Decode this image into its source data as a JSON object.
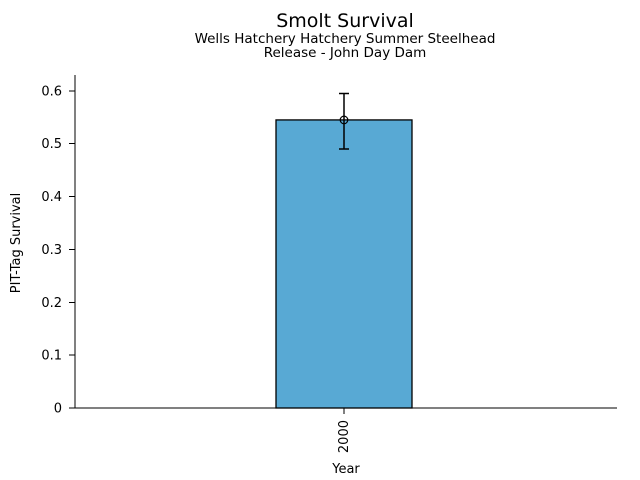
{
  "chart_data": {
    "type": "bar",
    "title": "Smolt Survival",
    "subtitle_line1": "Wells Hatchery Hatchery Summer Steelhead",
    "subtitle_line2": "Release - John Day Dam",
    "xlabel": "Year",
    "ylabel": "PIT-Tag Survival",
    "categories": [
      "2000"
    ],
    "values": [
      0.545
    ],
    "error_low": [
      0.49
    ],
    "error_high": [
      0.595
    ],
    "ylim": [
      0,
      0.63
    ],
    "ytick_values": [
      0,
      0.1,
      0.2,
      0.3,
      0.4,
      0.5,
      0.6
    ],
    "yticks": [
      "0",
      "0.1",
      "0.2",
      "0.3",
      "0.4",
      "0.5",
      "0.6"
    ],
    "xtick_rotation_deg": 90,
    "grid": false,
    "legend": false,
    "marker": "open-circle",
    "bar_fill": "#58A9D4",
    "bar_edge": "#000000",
    "errorbar_color": "#000000",
    "text_color": "#000000",
    "background": "#FFFFFF"
  }
}
